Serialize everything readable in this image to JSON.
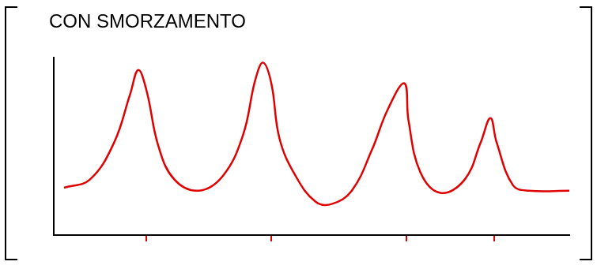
{
  "chart_data": {
    "type": "line",
    "title": "CON SMORZAMENTO",
    "x": [
      2.0,
      7.0,
      11.7,
      14.8,
      16.4,
      18.0,
      20.3,
      23.4,
      28.1,
      32.8,
      36.7,
      39.1,
      40.6,
      42.2,
      43.8,
      46.9,
      50.8,
      53.9,
      57.8,
      61.7,
      64.8,
      68.0,
      68.8,
      71.1,
      75.0,
      79.7,
      82.8,
      84.7,
      85.9,
      89.1,
      92.2,
      100
    ],
    "values": [
      3.2,
      3.75,
      6.25,
      9.5,
      11.15,
      9.75,
      6.0,
      3.75,
      3.0,
      4.0,
      6.75,
      10.5,
      11.65,
      10.25,
      6.5,
      4.0,
      2.25,
      2.1,
      3.0,
      5.75,
      8.5,
      10.25,
      7.75,
      4.25,
      2.85,
      3.75,
      6.25,
      7.9,
      6.25,
      3.35,
      3.0,
      3.0
    ],
    "color": "#e00000",
    "xlim": [
      0,
      100
    ],
    "xticks": [
      18,
      42.2,
      68.4,
      85.5
    ],
    "ylim": [
      0,
      12
    ],
    "yticks": [],
    "grid": false,
    "tick_labels": false
  }
}
